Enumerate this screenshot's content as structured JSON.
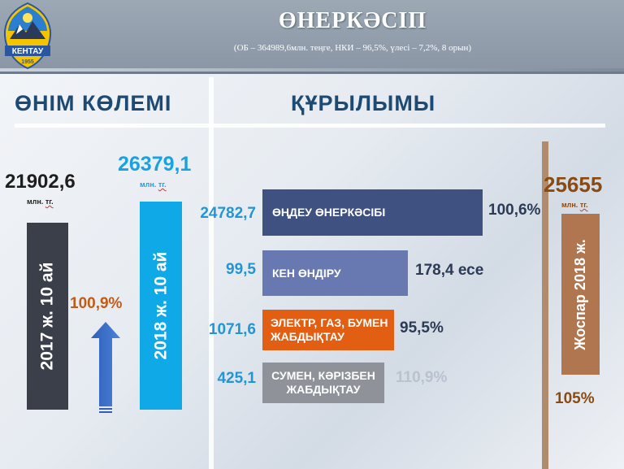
{
  "header": {
    "title": "ӨНЕРКӘСІП",
    "subtitle": "(ОБ – 364989,6млн. теңге, НКИ – 96,5%, үлесі – 7,2%, 8 орын)",
    "logo_text": "КЕНТАУ",
    "logo_year": "1955"
  },
  "left": {
    "heading": "ӨНІМ КӨЛЕМІ",
    "value_2017": "21902,6",
    "value_2018": "26379,1",
    "unit_prefix": "млн.",
    "unit_tg": "тг.",
    "bar_2017_label": "2017 ж. 10 ай",
    "bar_2018_label": "2018 ж. 10 ай",
    "growth_pct": "100,9%"
  },
  "structure": {
    "heading": "ҚҰРЫЛЫМЫ",
    "items": [
      {
        "value": "24782,7",
        "label": "ӨҢДЕУ ӨНЕРКӘСІБІ",
        "pct": "100,6%"
      },
      {
        "value": "99,5",
        "label": "КЕН ӨНДІРУ",
        "pct": "178,4 есе"
      },
      {
        "value": "1071,6",
        "label": "ЭЛЕКТР, ГАЗ, БУМЕН ЖАБДЫҚТАУ",
        "pct": "95,5%"
      },
      {
        "value": "425,1",
        "label": "СУМЕН, КӘРІЗБЕН ЖАБДЫҚТАУ",
        "pct": "110,9%"
      }
    ]
  },
  "plan": {
    "value": "25655",
    "bar_label": "Жоспар 2018 ж.",
    "pct": "105%"
  },
  "colors": {
    "header": "#8a96a5",
    "bar_2017": "#3a3f49",
    "bar_2018": "#10a9e8",
    "structure_1": "#3e5181",
    "structure_2": "#6779b0",
    "structure_3": "#e25e12",
    "structure_4": "#8f9399",
    "plan": "#b07650"
  }
}
